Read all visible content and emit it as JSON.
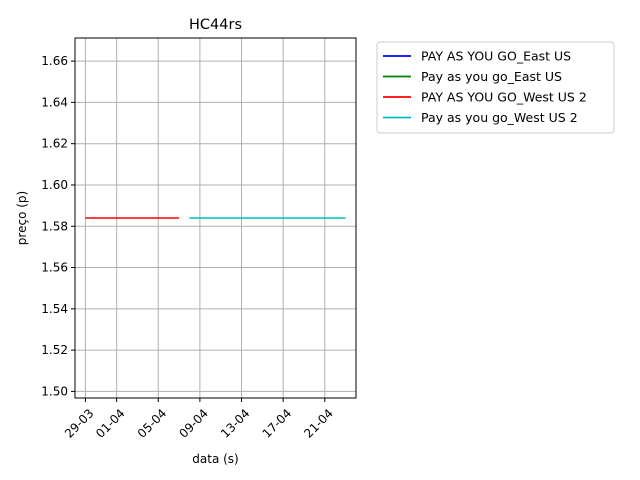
{
  "chart_data": {
    "type": "line",
    "title": "HC44rs",
    "xlabel": "data (s)",
    "ylabel": "preço (p)",
    "x_ticks": [
      "29-03",
      "01-04",
      "05-04",
      "09-04",
      "13-04",
      "17-04",
      "21-04"
    ],
    "y_ticks": [
      "1.50",
      "1.52",
      "1.54",
      "1.56",
      "1.58",
      "1.60",
      "1.62",
      "1.64",
      "1.66"
    ],
    "xlim": [
      "2021-03-28",
      "2021-04-24"
    ],
    "ylim": [
      1.4968,
      1.6712
    ],
    "grid": true,
    "legend_position": "outside-upper-right",
    "series": [
      {
        "name": "PAY AS YOU GO_East US",
        "color": "#0000ff",
        "points": []
      },
      {
        "name": "Pay as you go_East US",
        "color": "#008000",
        "points": []
      },
      {
        "name": "PAY AS YOU GO_West US 2",
        "color": "#ff0000",
        "points": [
          [
            "2021-03-29",
            1.584
          ],
          [
            "2021-04-07",
            1.584
          ]
        ]
      },
      {
        "name": "Pay as you go_West US 2",
        "color": "#00bfbf",
        "points": [
          [
            "2021-04-08",
            1.584
          ],
          [
            "2021-04-23",
            1.584
          ]
        ]
      }
    ]
  }
}
